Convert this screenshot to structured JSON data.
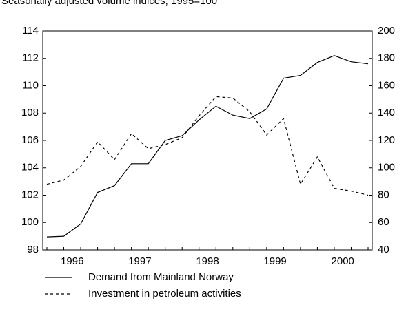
{
  "chart_data": {
    "type": "line",
    "title": "Seasonally adjusted volume indices, 1995=100",
    "categories": [
      "1996",
      null,
      null,
      null,
      "1997",
      null,
      null,
      null,
      "1998",
      null,
      null,
      null,
      "1999",
      null,
      null,
      null,
      "2000",
      null,
      null,
      null
    ],
    "series": [
      {
        "name": "Demand from Mainland Norway",
        "color": "#000000",
        "dash": "solid",
        "axis": "y",
        "values": [
          98.95,
          99.0,
          99.9,
          102.2,
          102.7,
          104.3,
          104.3,
          106.0,
          106.35,
          107.5,
          108.5,
          107.85,
          107.6,
          108.3,
          110.55,
          110.75,
          111.7,
          112.2,
          111.75,
          111.6
        ]
      },
      {
        "name": "Investment in petroleum activities",
        "color": "#000000",
        "dash": "dashed",
        "axis": "y2",
        "values": [
          88,
          91,
          101,
          119,
          106,
          125,
          114,
          117,
          122,
          138,
          152,
          151,
          141,
          124,
          136,
          88,
          108,
          85,
          83,
          80
        ]
      }
    ],
    "ylim": [
      98,
      114
    ],
    "yticks": [
      98,
      100,
      102,
      104,
      106,
      108,
      110,
      112,
      114
    ],
    "y2lim": [
      40,
      200
    ],
    "y2ticks": [
      40,
      60,
      80,
      100,
      120,
      140,
      160,
      180,
      200
    ],
    "grid": false,
    "legend": "bottom"
  }
}
